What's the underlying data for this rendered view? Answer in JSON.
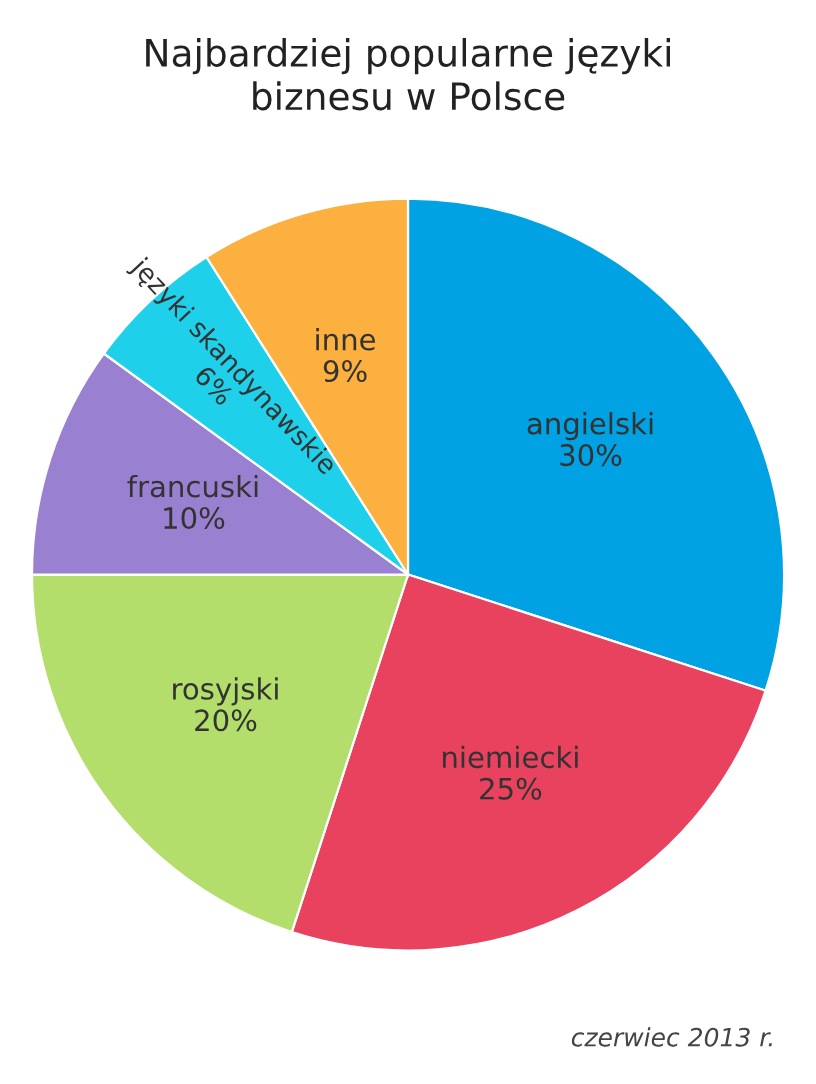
{
  "chart_data": {
    "type": "pie",
    "title": "Najbardziej popularne języki\nbiznesu w Polsce",
    "categories": [
      "angielski",
      "niemiecki",
      "rosyjski",
      "francuski",
      "języki skandynawskie",
      "inne"
    ],
    "values": [
      30,
      25,
      20,
      10,
      6,
      9
    ],
    "value_labels": [
      "30%",
      "25%",
      "20%",
      "10%",
      "6%",
      "9%"
    ],
    "colors": [
      "#00a2e3",
      "#e8425f",
      "#b3de6b",
      "#9a80d0",
      "#1fd0ea",
      "#fbb03f"
    ],
    "annotations": [
      "czerwiec 2013 r."
    ]
  }
}
